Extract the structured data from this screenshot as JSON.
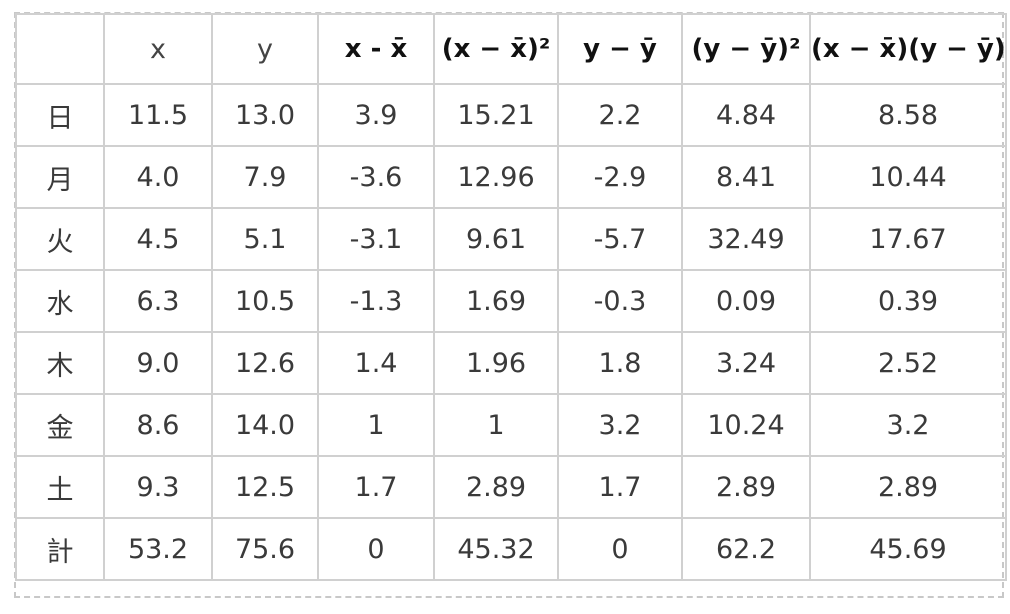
{
  "table": {
    "columns": [
      "x",
      "y",
      "x - x̄",
      "(x − x̄)²",
      "y − ȳ",
      "(y − ȳ)²",
      "(x − x̄)(y − ȳ)"
    ],
    "rows": [
      [
        "日",
        "11.5",
        "13.0",
        "3.9",
        "15.21",
        "2.2",
        "4.84",
        "8.58"
      ],
      [
        "月",
        "4.0",
        "7.9",
        "-3.6",
        "12.96",
        "-2.9",
        "8.41",
        "10.44"
      ],
      [
        "火",
        "4.5",
        "5.1",
        "-3.1",
        "9.61",
        "-5.7",
        "32.49",
        "17.67"
      ],
      [
        "水",
        "6.3",
        "10.5",
        "-1.3",
        "1.69",
        "-0.3",
        "0.09",
        "0.39"
      ],
      [
        "木",
        "9.0",
        "12.6",
        "1.4",
        "1.96",
        "1.8",
        "3.24",
        "2.52"
      ],
      [
        "金",
        "8.6",
        "14.0",
        "1",
        "1",
        "3.2",
        "10.24",
        "3.2"
      ],
      [
        "土",
        "9.3",
        "12.5",
        "1.7",
        "2.89",
        "1.7",
        "2.89",
        "2.89"
      ],
      [
        "計",
        "53.2",
        "75.6",
        "0",
        "45.32",
        "0",
        "62.2",
        "45.69"
      ]
    ]
  }
}
